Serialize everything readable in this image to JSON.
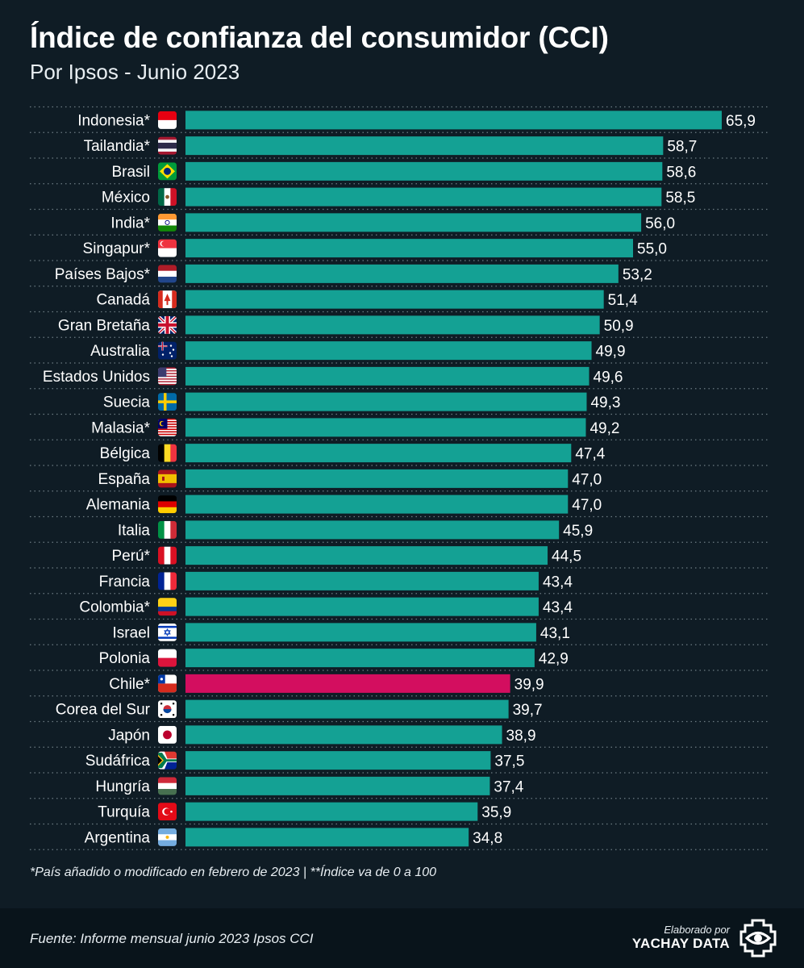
{
  "header": {
    "title": "Índice de confianza del consumidor (CCI)",
    "subtitle": "Por Ipsos - Junio 2023"
  },
  "colors": {
    "background": "#0f1c25",
    "bar": "#14a194",
    "highlight": "#d30e5f",
    "footer": "#09141b"
  },
  "chart_data": {
    "type": "bar",
    "orientation": "horizontal",
    "categories": [
      "Indonesia*",
      "Tailandia*",
      "Brasil",
      "México",
      "India*",
      "Singapur*",
      "Países Bajos*",
      "Canadá",
      "Gran Bretaña",
      "Australia",
      "Estados Unidos",
      "Suecia",
      "Malasia*",
      "Bélgica",
      "España",
      "Alemania",
      "Italia",
      "Perú*",
      "Francia",
      "Colombia*",
      "Israel",
      "Polonia",
      "Chile*",
      "Corea del Sur",
      "Japón",
      "Sudáfrica",
      "Hungría",
      "Turquía",
      "Argentina"
    ],
    "values": [
      65.9,
      58.7,
      58.6,
      58.5,
      56.0,
      55.0,
      53.2,
      51.4,
      50.9,
      49.9,
      49.6,
      49.3,
      49.2,
      47.4,
      47.0,
      47.0,
      45.9,
      44.5,
      43.4,
      43.4,
      43.1,
      42.9,
      39.9,
      39.7,
      38.9,
      37.5,
      37.4,
      35.9,
      34.8
    ],
    "value_labels": [
      "65,9",
      "58,7",
      "58,6",
      "58,5",
      "56,0",
      "55,0",
      "53,2",
      "51,4",
      "50,9",
      "49,9",
      "49,6",
      "49,3",
      "49,2",
      "47,4",
      "47,0",
      "47,0",
      "45,9",
      "44,5",
      "43,4",
      "43,4",
      "43,1",
      "42,9",
      "39,9",
      "39,7",
      "38,9",
      "37,5",
      "37,4",
      "35,9",
      "34,8"
    ],
    "flags": [
      "flag-indonesia",
      "flag-thailand",
      "flag-brazil",
      "flag-mexico",
      "flag-india",
      "flag-singapore",
      "flag-netherlands",
      "flag-canada",
      "flag-uk",
      "flag-australia",
      "flag-usa",
      "flag-sweden",
      "flag-malaysia",
      "flag-belgium",
      "flag-spain",
      "flag-germany",
      "flag-italy",
      "flag-peru",
      "flag-france",
      "flag-colombia",
      "flag-israel",
      "flag-poland",
      "flag-chile",
      "flag-south-korea",
      "flag-japan",
      "flag-south-africa",
      "flag-hungary",
      "flag-turkey",
      "flag-argentina"
    ],
    "highlight": "Chile*",
    "xlim": [
      0,
      65.9
    ],
    "grid": "dotted row separators"
  },
  "footnote": "*País añadido o modificado en febrero de 2023 | **Índice va de 0 a 100",
  "footer": {
    "source": "Fuente: Informe mensual junio 2023 Ipsos CCI",
    "brand_top": "Elaborado por",
    "brand_name": "YACHAY DATA",
    "logo_icon": "eye-icon"
  }
}
